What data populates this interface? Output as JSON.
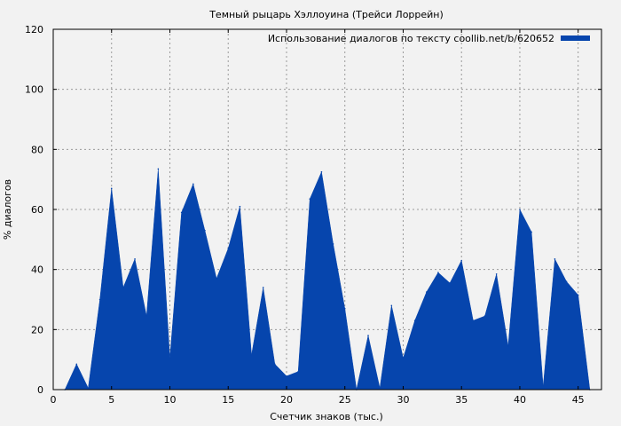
{
  "chart_data": {
    "type": "area",
    "title": "Темный рыцарь Хэллоуина (Трейси Лоррейн)",
    "xlabel": "Счетчик знаков (тыс.)",
    "ylabel": "% диалогов",
    "xlim": [
      0,
      47
    ],
    "ylim": [
      0,
      120
    ],
    "xticks": [
      0,
      5,
      10,
      15,
      20,
      25,
      30,
      35,
      40,
      45
    ],
    "yticks": [
      0,
      20,
      40,
      60,
      80,
      100,
      120
    ],
    "grid": true,
    "legend_position": "top-right",
    "series": [
      {
        "name": "Использование диалогов по тексту coollib.net/b/620652",
        "color": "#0645ad",
        "x": [
          1,
          2,
          3,
          4,
          5,
          6,
          7,
          8,
          9,
          10,
          11,
          12,
          13,
          14,
          15,
          16,
          17,
          18,
          19,
          20,
          21,
          22,
          23,
          24,
          25,
          26,
          27,
          28,
          29,
          30,
          31,
          32,
          33,
          34,
          35,
          36,
          37,
          38,
          39,
          40,
          41,
          42,
          43,
          44,
          45,
          46
        ],
        "values": [
          0,
          8.5,
          0.5,
          30,
          67,
          34,
          43.5,
          24.5,
          73.5,
          10.5,
          59,
          68.5,
          53,
          37,
          47,
          61,
          11.5,
          34,
          8.5,
          4.5,
          6,
          63.5,
          72.5,
          48.5,
          27,
          0,
          18,
          0.5,
          28,
          10.5,
          23,
          32.5,
          39,
          35.5,
          43,
          23,
          24.5,
          38.5,
          14.5,
          60,
          52.5,
          1,
          43.5,
          36,
          31.5,
          0
        ]
      }
    ]
  }
}
